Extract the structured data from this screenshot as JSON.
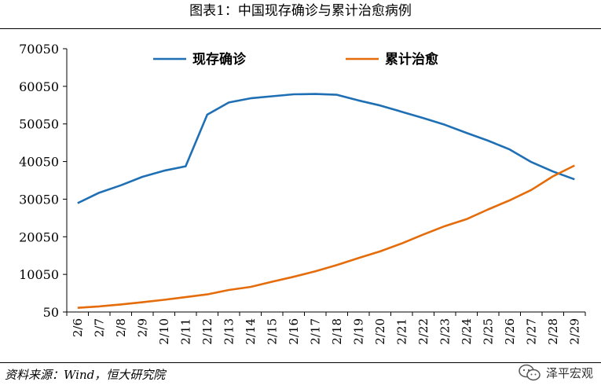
{
  "title": "图表1：中国现存确诊与累计治愈病例",
  "source": "资料来源：Wind，恒大研究院",
  "watermark": "泽平宏观",
  "chart_data": {
    "type": "line",
    "categories": [
      "2/6",
      "2/7",
      "2/8",
      "2/9",
      "2/10",
      "2/11",
      "2/12",
      "2/13",
      "2/14",
      "2/15",
      "2/16",
      "2/17",
      "2/18",
      "2/19",
      "2/20",
      "2/21",
      "2/22",
      "2/23",
      "2/24",
      "2/25",
      "2/26",
      "2/27",
      "2/28",
      "2/29"
    ],
    "series": [
      {
        "name": "现存确诊",
        "color": "#1f6fb5",
        "values": [
          28985,
          31774,
          33738,
          35982,
          37626,
          38800,
          52526,
          55748,
          56873,
          57416,
          57934,
          58016,
          57805,
          56303,
          54965,
          53284,
          51606,
          49824,
          47672,
          45604,
          43258,
          39919,
          37414,
          35329
        ]
      },
      {
        "name": "累计治愈",
        "color": "#e46c0a",
        "values": [
          1153,
          1540,
          2050,
          2649,
          3281,
          3996,
          4740,
          5911,
          6723,
          8096,
          9419,
          10844,
          12552,
          14376,
          16155,
          18264,
          20659,
          22888,
          24734,
          27323,
          29745,
          32495,
          36117,
          39002
        ]
      }
    ],
    "yticks": [
      50,
      10050,
      20050,
      30050,
      40050,
      50050,
      60050,
      70050
    ],
    "ylim": [
      50,
      70050
    ],
    "grid": false,
    "legend": "top"
  }
}
